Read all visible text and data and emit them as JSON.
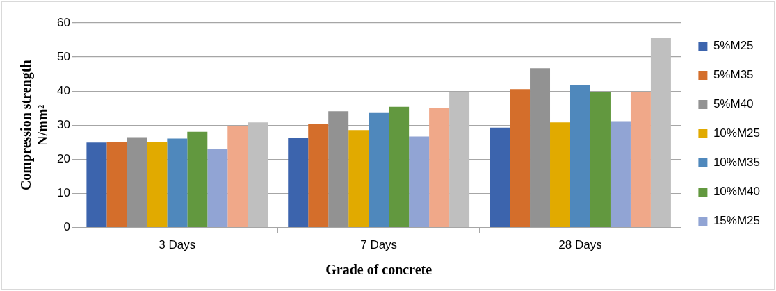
{
  "chart_data": {
    "type": "bar",
    "xlabel": "Grade of concrete",
    "ylabel": "Compression strength\nN/mm²",
    "categories": [
      "3 Days",
      "7 Days",
      "28 Days"
    ],
    "series": [
      {
        "name": "5%M25",
        "color": "#3c64ad",
        "values": [
          24.9,
          26.4,
          29.3
        ]
      },
      {
        "name": "5%M35",
        "color": "#d46e2b",
        "values": [
          25.1,
          30.3,
          40.6
        ]
      },
      {
        "name": "5%M40",
        "color": "#929292",
        "values": [
          26.5,
          34.1,
          46.7
        ]
      },
      {
        "name": "10%M25",
        "color": "#e1aa00",
        "values": [
          25.1,
          28.6,
          30.8
        ]
      },
      {
        "name": "10%M35",
        "color": "#4f88bc",
        "values": [
          26.1,
          33.8,
          41.7
        ]
      },
      {
        "name": "10%M40",
        "color": "#62983f",
        "values": [
          28.1,
          35.4,
          39.7
        ]
      },
      {
        "name": "15%M25",
        "color": "#91a4d4",
        "values": [
          23.0,
          26.7,
          31.2
        ]
      },
      {
        "color": "#f0a889",
        "values": [
          29.7,
          35.1,
          39.8
        ]
      },
      {
        "color": "#bfbfbf",
        "values": [
          30.8,
          39.8,
          55.7
        ]
      }
    ],
    "ylim": [
      0,
      60
    ],
    "yticks": [
      0,
      10,
      20,
      30,
      40,
      50,
      60
    ],
    "grid": "y",
    "legend": "right"
  }
}
